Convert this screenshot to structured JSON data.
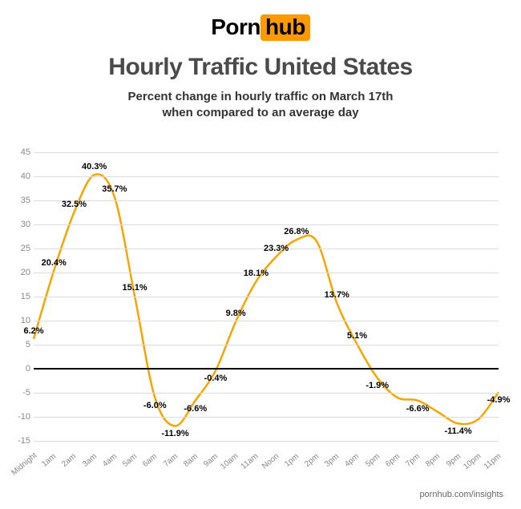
{
  "logo": {
    "left": "Porn",
    "right": "hub"
  },
  "title": "Hourly Traffic United States",
  "subtitle_line1": "Percent change in hourly traffic on March 17th",
  "subtitle_line2": "when compared to an average day",
  "footer": "pornhub.com/insights",
  "chart": {
    "type": "line",
    "line_color": "#f7a500",
    "line_width": 2.5,
    "background_color": "#ffffff",
    "grid_color": "#dcdcdc",
    "zero_line_color": "#000000",
    "ylim": [
      -15,
      45
    ],
    "ytick_step": 5,
    "categories": [
      "Midnight",
      "1am",
      "2am",
      "3am",
      "4am",
      "5am",
      "6am",
      "7am",
      "8am",
      "9am",
      "10am",
      "11am",
      "Noon",
      "1pm",
      "2pm",
      "3pm",
      "4pm",
      "5pm",
      "6pm",
      "7pm",
      "8pm",
      "9pm",
      "10pm",
      "11pm"
    ],
    "values": [
      6.2,
      20.4,
      32.5,
      40.3,
      35.7,
      15.1,
      -6.0,
      -11.9,
      -6.6,
      -0.4,
      9.8,
      18.1,
      23.3,
      26.8,
      26.5,
      13.7,
      5.1,
      -1.9,
      -6.0,
      -6.6,
      -9.0,
      -11.4,
      -10.5,
      -4.9
    ],
    "labels": [
      "6.2%",
      "20.4%",
      "32.5%",
      "40.3%",
      "35.7%",
      "15.1%",
      "-6.0%",
      "-11.9%",
      "-6.6%",
      "-0.4%",
      "9.8%",
      "18.1%",
      "23.3%",
      "26.8%",
      "",
      "13.7%",
      "5.1%",
      "-1.9%",
      "",
      "-6.6%",
      "",
      "-11.4%",
      "",
      "-4.9%"
    ],
    "label_fontsize": 11,
    "tick_fontsize": 11
  }
}
